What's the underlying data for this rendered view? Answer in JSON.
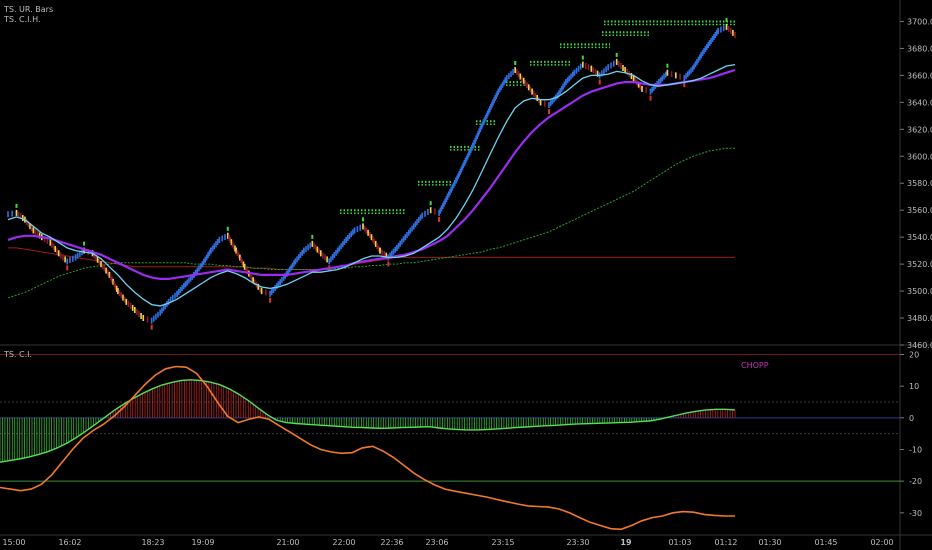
{
  "header": {
    "upper_line1": "TS. UR. Bars",
    "upper_line2": "TS. C.I.H.",
    "lower_title": "TS. C.I.",
    "chopp_label": "CHOPP"
  },
  "colors": {
    "background": "#000000",
    "bar_up": "#2f6fe0",
    "bar_down": "#8a1c2c",
    "bar_highlight": "#f2d34a",
    "dot_marker": "#3ddc3d",
    "fast_ma": "#6fd3f5",
    "mid_ma": "#9b2cf0",
    "slow_ma": "#2aa12a",
    "red_line": "#9b1e1e",
    "hist_pos": "#d42a2a",
    "hist_neg": "#3ed63e",
    "osc_line": "#f07a2a",
    "level_line": "#3a8f3a",
    "zero_line": "#2b3b8f"
  },
  "chart_data": [
    {
      "type": "line",
      "panel": "price",
      "y_ticks": [
        "3700.0",
        "3680.0",
        "3660.0",
        "3640.0",
        "3620.0",
        "3600.0",
        "3580.0",
        "3560.0",
        "3540.0",
        "3520.0",
        "3500.0",
        "3480.0",
        "3460.0"
      ],
      "ylim": [
        3460,
        3710
      ],
      "x_labels": [
        "15:00",
        "16:02",
        "18:23",
        "19:09",
        "21:00",
        "22:00",
        "22:36",
        "23:06",
        "23:15",
        "23:30",
        "19",
        "01:03",
        "01:12",
        "01:30",
        "01:45",
        "02:00"
      ],
      "series": [
        {
          "role": "price",
          "values": [
            3557,
            3558,
            3553,
            3545,
            3540,
            3536,
            3528,
            3522,
            3525,
            3530,
            3528,
            3520,
            3512,
            3500,
            3492,
            3486,
            3480,
            3478,
            3484,
            3492,
            3498,
            3505,
            3512,
            3520,
            3530,
            3538,
            3541,
            3530,
            3518,
            3508,
            3500,
            3498,
            3505,
            3513,
            3522,
            3530,
            3535,
            3528,
            3522,
            3530,
            3538,
            3545,
            3548,
            3540,
            3530,
            3525,
            3532,
            3540,
            3548,
            3556,
            3560,
            3558,
            3570,
            3582,
            3595,
            3608,
            3622,
            3635,
            3648,
            3658,
            3664,
            3656,
            3648,
            3640,
            3638,
            3645,
            3655,
            3662,
            3668,
            3665,
            3660,
            3666,
            3670,
            3664,
            3658,
            3650,
            3648,
            3655,
            3662,
            3660,
            3658,
            3665,
            3675,
            3684,
            3693,
            3696,
            3690
          ]
        },
        {
          "role": "fast",
          "values": [
            3553,
            3555,
            3553,
            3548,
            3543,
            3540,
            3536,
            3532,
            3530,
            3529,
            3528,
            3524,
            3518,
            3512,
            3505,
            3499,
            3494,
            3490,
            3489,
            3491,
            3494,
            3498,
            3502,
            3506,
            3510,
            3513,
            3515,
            3513,
            3510,
            3506,
            3503,
            3502,
            3503,
            3505,
            3508,
            3511,
            3514,
            3514,
            3515,
            3516,
            3518,
            3521,
            3524,
            3526,
            3526,
            3525,
            3525,
            3526,
            3528,
            3532,
            3536,
            3540,
            3546,
            3554,
            3564,
            3575,
            3588,
            3601,
            3614,
            3626,
            3636,
            3641,
            3643,
            3642,
            3642,
            3644,
            3648,
            3653,
            3658,
            3660,
            3660,
            3661,
            3663,
            3662,
            3660,
            3656,
            3653,
            3652,
            3653,
            3654,
            3655,
            3656,
            3658,
            3661,
            3664,
            3667,
            3668
          ]
        },
        {
          "role": "mid",
          "values": [
            3538,
            3540,
            3541,
            3541,
            3540,
            3539,
            3537,
            3535,
            3533,
            3531,
            3529,
            3527,
            3524,
            3521,
            3518,
            3515,
            3512,
            3510,
            3509,
            3509,
            3510,
            3511,
            3512,
            3513,
            3514,
            3515,
            3516,
            3515,
            3514,
            3513,
            3512,
            3512,
            3512,
            3512,
            3513,
            3514,
            3515,
            3516,
            3517,
            3518,
            3519,
            3521,
            3522,
            3523,
            3524,
            3525,
            3526,
            3527,
            3529,
            3531,
            3534,
            3537,
            3541,
            3547,
            3553,
            3560,
            3568,
            3576,
            3585,
            3594,
            3603,
            3611,
            3618,
            3624,
            3629,
            3633,
            3637,
            3641,
            3645,
            3648,
            3650,
            3652,
            3654,
            3655,
            3655,
            3654,
            3653,
            3653,
            3653,
            3654,
            3655,
            3656,
            3657,
            3658,
            3660,
            3662,
            3664
          ]
        },
        {
          "role": "slow",
          "values": [
            3495,
            3497,
            3499,
            3502,
            3505,
            3508,
            3511,
            3513,
            3515,
            3517,
            3518,
            3519,
            3520,
            3521,
            3521,
            3521,
            3521,
            3521,
            3521,
            3521,
            3521,
            3521,
            3520,
            3520,
            3520,
            3519,
            3519,
            3518,
            3518,
            3517,
            3517,
            3516,
            3516,
            3516,
            3516,
            3516,
            3516,
            3516,
            3516,
            3517,
            3517,
            3518,
            3518,
            3519,
            3519,
            3520,
            3520,
            3521,
            3521,
            3522,
            3523,
            3524,
            3525,
            3526,
            3527,
            3528,
            3529,
            3531,
            3532,
            3534,
            3536,
            3538,
            3540,
            3542,
            3544,
            3547,
            3550,
            3553,
            3556,
            3559,
            3562,
            3565,
            3568,
            3571,
            3574,
            3578,
            3582,
            3586,
            3590,
            3594,
            3597,
            3600,
            3602,
            3604,
            3605,
            3606,
            3606
          ]
        },
        {
          "role": "red",
          "values": [
            3532,
            3532,
            3531,
            3530,
            3529,
            3528,
            3527,
            3526,
            3525,
            3524,
            3523,
            3522,
            3521,
            3520,
            3519,
            3518,
            3518,
            3518,
            3518,
            3518,
            3518,
            3518,
            3518,
            3518,
            3518,
            3518,
            3518,
            3518,
            3518,
            3517,
            3517,
            3517,
            3516,
            3516,
            3516,
            3516,
            3516,
            3516,
            3517,
            3518,
            3519,
            3520,
            3521,
            3522,
            3523,
            3524,
            3525,
            3525,
            3525,
            3525,
            3525,
            3525,
            3525,
            3525,
            3525,
            3525,
            3525,
            3525,
            3525,
            3525,
            3525,
            3525,
            3525,
            3525,
            3525,
            3525,
            3525,
            3525,
            3525,
            3525,
            3525,
            3525,
            3525,
            3525,
            3525,
            3525,
            3525,
            3525,
            3525,
            3525,
            3525,
            3525,
            3525,
            3525,
            3525,
            3525,
            3525
          ]
        }
      ],
      "resistance_levels": [
        3560,
        3581,
        3607,
        3626,
        3655,
        3670,
        3683,
        3692,
        3700
      ]
    },
    {
      "type": "line",
      "panel": "oscillator",
      "y_ticks": [
        "20",
        "10",
        "0",
        "-10",
        "-20",
        "-30"
      ],
      "ylim": [
        -37,
        23
      ],
      "levels": [
        20,
        -20
      ],
      "series": [
        {
          "role": "histogram",
          "values": [
            -14,
            -13.5,
            -13,
            -12.4,
            -11.6,
            -10.7,
            -9.5,
            -8,
            -6.2,
            -4.2,
            -2,
            0.2,
            2.4,
            4.4,
            6.2,
            7.8,
            9.2,
            10.4,
            11.2,
            11.8,
            12,
            11.8,
            11.3,
            10.5,
            9.2,
            7.5,
            5.5,
            3.2,
            1,
            -0.8,
            -1.5,
            -1.8,
            -2,
            -2.2,
            -2.4,
            -2.6,
            -2.8,
            -3,
            -3.1,
            -3.2,
            -3.3,
            -3.2,
            -3.1,
            -3,
            -2.9,
            -2.8,
            -3.2,
            -3.5,
            -3.7,
            -3.8,
            -3.8,
            -3.7,
            -3.5,
            -3.3,
            -3.1,
            -2.9,
            -2.7,
            -2.5,
            -2.4,
            -2.2,
            -2,
            -1.9,
            -1.8,
            -1.7,
            -1.6,
            -1.5,
            -1.4,
            -1.2,
            -1,
            -0.5,
            0.2,
            0.9,
            1.6,
            2.1,
            2.5,
            2.7,
            2.7,
            2.5
          ]
        },
        {
          "role": "osc",
          "values": [
            -22,
            -22.5,
            -23,
            -22.5,
            -21,
            -18,
            -14,
            -10,
            -6.5,
            -4,
            -2,
            0.5,
            3.5,
            7,
            10.5,
            13.5,
            15.5,
            16.2,
            16,
            14,
            10,
            5,
            0.5,
            -1.5,
            -0.5,
            0.3,
            -0.5,
            -2.5,
            -4.5,
            -6.5,
            -8.5,
            -10,
            -10.8,
            -11.2,
            -11,
            -9.5,
            -9,
            -10.5,
            -12.5,
            -15,
            -17.5,
            -19.5,
            -21.2,
            -22.5,
            -23.2,
            -23.8,
            -24.4,
            -25,
            -25.8,
            -26.5,
            -27.2,
            -27.8,
            -28,
            -28.2,
            -28.8,
            -30,
            -31.5,
            -33,
            -34,
            -35,
            -35.2,
            -34,
            -32.5,
            -31.5,
            -31,
            -30,
            -29.6,
            -29.8,
            -30.5,
            -30.8,
            -31,
            -31
          ]
        }
      ]
    }
  ]
}
